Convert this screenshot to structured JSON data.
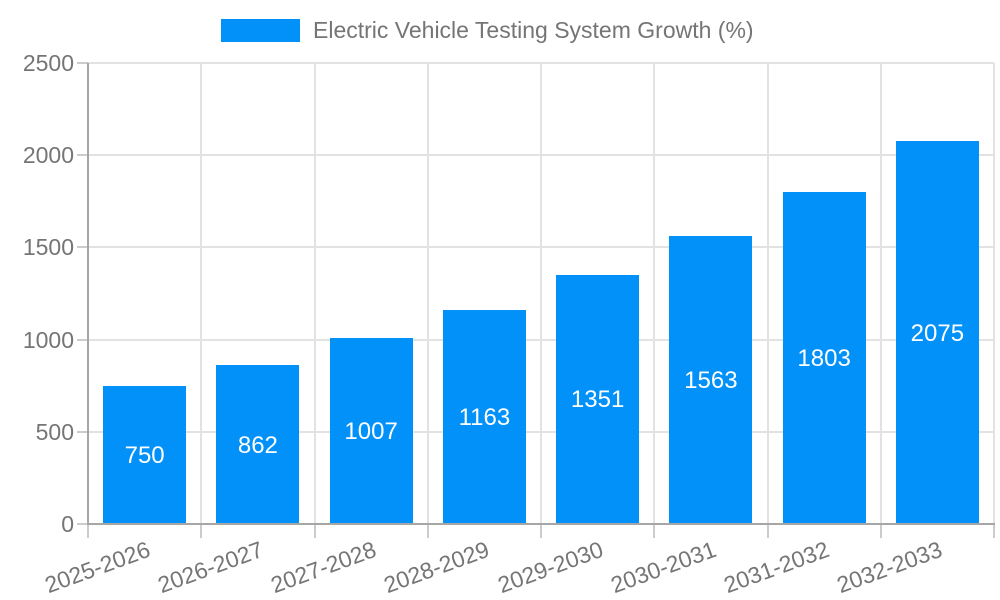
{
  "legend": {
    "position": "top",
    "label": "Electric Vehicle Testing System Growth (%)"
  },
  "chart_data": {
    "type": "bar",
    "title": "Electric Vehicle Testing System Growth (%)",
    "series": [
      {
        "name": "Electric Vehicle Testing System Growth (%)",
        "values": [
          750,
          862,
          1007,
          1163,
          1351,
          1563,
          1803,
          2075
        ]
      }
    ],
    "categories": [
      "2025-2026",
      "2026-2027",
      "2027-2028",
      "2028-2029",
      "2029-2030",
      "2030-2031",
      "2031-2032",
      "2032-2033"
    ],
    "value_labels": [
      "750",
      "862",
      "1007",
      "1163",
      "1351",
      "1563",
      "1803",
      "2075"
    ],
    "xlabel": "",
    "ylabel": "",
    "ylim": [
      0,
      2500
    ],
    "ytick_step": 500,
    "ytick_labels": [
      "0",
      "500",
      "1000",
      "1500",
      "2000",
      "2500"
    ],
    "grid": true,
    "x_label_rotation_deg": -20,
    "legend_position": "top",
    "colors": {
      "bar": "#0291f8",
      "value_label": "#ffffff",
      "axis_text": "#757575",
      "gridline": "#e2e2e2",
      "tick": "#cccccc",
      "axis_line": "#a6a6a6",
      "background": "#ffffff"
    }
  }
}
